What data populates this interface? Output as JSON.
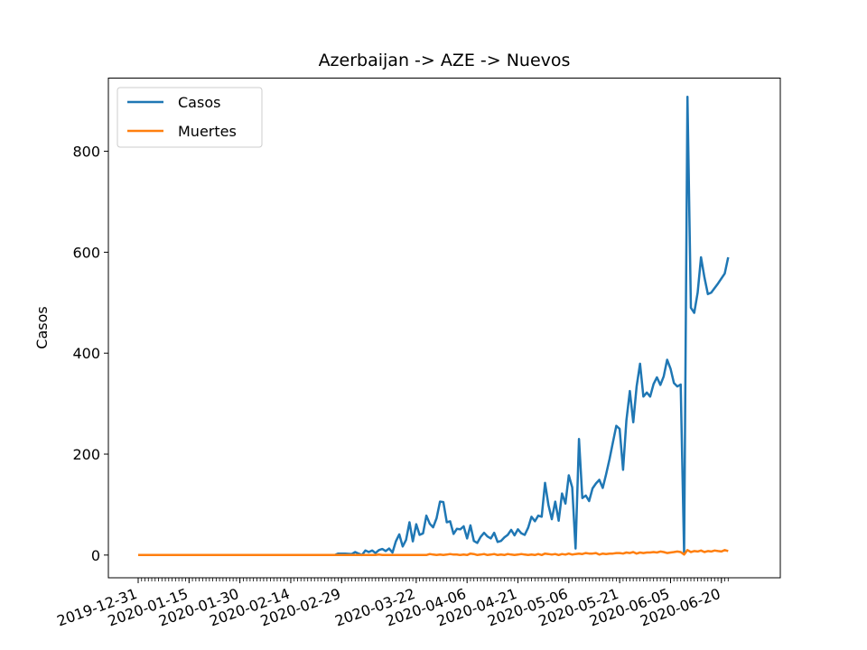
{
  "chart_data": {
    "type": "line",
    "title": "Azerbaijan -> AZE -> Nuevos",
    "xlabel": "",
    "ylabel": "Casos",
    "x_ticks": [
      "2019-12-31",
      "2020-01-15",
      "2020-01-30",
      "2020-02-14",
      "2020-02-29",
      "2020-03-22",
      "2020-04-06",
      "2020-04-21",
      "2020-05-06",
      "2020-05-21",
      "2020-06-05",
      "2020-06-20"
    ],
    "ylim": [
      -45,
      945
    ],
    "yticks": [
      0,
      200,
      400,
      600,
      800
    ],
    "grid": false,
    "legend_position": "top-left",
    "series": [
      {
        "name": "Casos",
        "color": "#1f77b4",
        "points": [
          [
            "2019-12-31",
            0
          ],
          [
            "2020-02-27",
            0
          ],
          [
            "2020-02-28",
            3
          ],
          [
            "2020-03-01",
            3
          ],
          [
            "2020-03-03",
            2
          ],
          [
            "2020-03-04",
            6
          ],
          [
            "2020-03-05",
            3
          ],
          [
            "2020-03-06",
            0
          ],
          [
            "2020-03-07",
            9
          ],
          [
            "2020-03-08",
            6
          ],
          [
            "2020-03-09",
            9
          ],
          [
            "2020-03-10",
            4
          ],
          [
            "2020-03-11",
            10
          ],
          [
            "2020-03-12",
            12
          ],
          [
            "2020-03-13",
            8
          ],
          [
            "2020-03-14",
            13
          ],
          [
            "2020-03-15",
            5
          ],
          [
            "2020-03-16",
            27
          ],
          [
            "2020-03-17",
            41
          ],
          [
            "2020-03-18",
            17
          ],
          [
            "2020-03-19",
            30
          ],
          [
            "2020-03-20",
            65
          ],
          [
            "2020-03-21",
            27
          ],
          [
            "2020-03-22",
            61
          ],
          [
            "2020-03-23",
            40
          ],
          [
            "2020-03-24",
            43
          ],
          [
            "2020-03-25",
            78
          ],
          [
            "2020-03-26",
            62
          ],
          [
            "2020-03-27",
            55
          ],
          [
            "2020-03-28",
            73
          ],
          [
            "2020-03-29",
            106
          ],
          [
            "2020-03-30",
            105
          ],
          [
            "2020-03-31",
            65
          ],
          [
            "2020-04-01",
            67
          ],
          [
            "2020-04-02",
            42
          ],
          [
            "2020-04-03",
            52
          ],
          [
            "2020-04-04",
            51
          ],
          [
            "2020-04-05",
            57
          ],
          [
            "2020-04-06",
            33
          ],
          [
            "2020-04-07",
            59
          ],
          [
            "2020-04-08",
            28
          ],
          [
            "2020-04-09",
            24
          ],
          [
            "2020-04-10",
            36
          ],
          [
            "2020-04-11",
            44
          ],
          [
            "2020-04-12",
            37
          ],
          [
            "2020-04-13",
            33
          ],
          [
            "2020-04-14",
            44
          ],
          [
            "2020-04-15",
            26
          ],
          [
            "2020-04-16",
            28
          ],
          [
            "2020-04-17",
            35
          ],
          [
            "2020-04-18",
            40
          ],
          [
            "2020-04-19",
            50
          ],
          [
            "2020-04-20",
            39
          ],
          [
            "2020-04-21",
            51
          ],
          [
            "2020-04-22",
            43
          ],
          [
            "2020-04-23",
            40
          ],
          [
            "2020-04-24",
            54
          ],
          [
            "2020-04-25",
            76
          ],
          [
            "2020-04-26",
            67
          ],
          [
            "2020-04-27",
            78
          ],
          [
            "2020-04-28",
            76
          ],
          [
            "2020-04-29",
            143
          ],
          [
            "2020-04-30",
            99
          ],
          [
            "2020-05-01",
            71
          ],
          [
            "2020-05-02",
            106
          ],
          [
            "2020-05-03",
            68
          ],
          [
            "2020-05-04",
            122
          ],
          [
            "2020-05-05",
            102
          ],
          [
            "2020-05-06",
            158
          ],
          [
            "2020-05-07",
            134
          ],
          [
            "2020-05-08",
            13
          ],
          [
            "2020-05-09",
            230
          ],
          [
            "2020-05-10",
            113
          ],
          [
            "2020-05-11",
            118
          ],
          [
            "2020-05-12",
            107
          ],
          [
            "2020-05-13",
            132
          ],
          [
            "2020-05-14",
            142
          ],
          [
            "2020-05-15",
            149
          ],
          [
            "2020-05-16",
            133
          ],
          [
            "2020-05-17",
            160
          ],
          [
            "2020-05-18",
            190
          ],
          [
            "2020-05-19",
            223
          ],
          [
            "2020-05-20",
            256
          ],
          [
            "2020-05-21",
            250
          ],
          [
            "2020-05-22",
            169
          ],
          [
            "2020-05-23",
            267
          ],
          [
            "2020-05-24",
            325
          ],
          [
            "2020-05-25",
            263
          ],
          [
            "2020-05-26",
            334
          ],
          [
            "2020-05-27",
            379
          ],
          [
            "2020-05-28",
            314
          ],
          [
            "2020-05-29",
            322
          ],
          [
            "2020-05-30",
            314
          ],
          [
            "2020-05-31",
            339
          ],
          [
            "2020-06-01",
            352
          ],
          [
            "2020-06-02",
            337
          ],
          [
            "2020-06-03",
            354
          ],
          [
            "2020-06-04",
            387
          ],
          [
            "2020-06-05",
            369
          ],
          [
            "2020-06-06",
            341
          ],
          [
            "2020-06-07",
            334
          ],
          [
            "2020-06-08",
            338
          ],
          [
            "2020-06-09",
            3
          ],
          [
            "2020-06-10",
            908
          ],
          [
            "2020-06-11",
            490
          ],
          [
            "2020-06-12",
            480
          ],
          [
            "2020-06-13",
            520
          ],
          [
            "2020-06-14",
            590
          ],
          [
            "2020-06-15",
            550
          ],
          [
            "2020-06-16",
            517
          ],
          [
            "2020-06-17",
            520
          ],
          [
            "2020-06-19",
            538
          ],
          [
            "2020-06-21",
            558
          ],
          [
            "2020-06-22",
            590
          ]
        ]
      },
      {
        "name": "Muertes",
        "color": "#ff7f0e",
        "points": [
          [
            "2019-12-31",
            0
          ],
          [
            "2020-03-10",
            0
          ],
          [
            "2020-03-11",
            1
          ],
          [
            "2020-03-12",
            0
          ],
          [
            "2020-03-25",
            0
          ],
          [
            "2020-03-26",
            2
          ],
          [
            "2020-03-27",
            1
          ],
          [
            "2020-03-28",
            0
          ],
          [
            "2020-03-29",
            1
          ],
          [
            "2020-03-30",
            0
          ],
          [
            "2020-03-31",
            1
          ],
          [
            "2020-04-01",
            2
          ],
          [
            "2020-04-02",
            1
          ],
          [
            "2020-04-03",
            1
          ],
          [
            "2020-04-04",
            0
          ],
          [
            "2020-04-05",
            1
          ],
          [
            "2020-04-06",
            0
          ],
          [
            "2020-04-07",
            3
          ],
          [
            "2020-04-08",
            2
          ],
          [
            "2020-04-09",
            0
          ],
          [
            "2020-04-10",
            1
          ],
          [
            "2020-04-11",
            2
          ],
          [
            "2020-04-12",
            0
          ],
          [
            "2020-04-13",
            1
          ],
          [
            "2020-04-14",
            2
          ],
          [
            "2020-04-15",
            0
          ],
          [
            "2020-04-16",
            1
          ],
          [
            "2020-04-17",
            0
          ],
          [
            "2020-04-18",
            2
          ],
          [
            "2020-04-19",
            1
          ],
          [
            "2020-04-20",
            0
          ],
          [
            "2020-04-21",
            1
          ],
          [
            "2020-04-22",
            2
          ],
          [
            "2020-04-23",
            1
          ],
          [
            "2020-04-24",
            0
          ],
          [
            "2020-04-25",
            1
          ],
          [
            "2020-04-26",
            0
          ],
          [
            "2020-04-27",
            2
          ],
          [
            "2020-04-28",
            0
          ],
          [
            "2020-04-29",
            3
          ],
          [
            "2020-04-30",
            2
          ],
          [
            "2020-05-01",
            1
          ],
          [
            "2020-05-02",
            2
          ],
          [
            "2020-05-03",
            0
          ],
          [
            "2020-05-04",
            2
          ],
          [
            "2020-05-05",
            1
          ],
          [
            "2020-05-06",
            3
          ],
          [
            "2020-05-07",
            1
          ],
          [
            "2020-05-08",
            2
          ],
          [
            "2020-05-09",
            3
          ],
          [
            "2020-05-10",
            2
          ],
          [
            "2020-05-11",
            4
          ],
          [
            "2020-05-12",
            3
          ],
          [
            "2020-05-13",
            3
          ],
          [
            "2020-05-14",
            4
          ],
          [
            "2020-05-15",
            1
          ],
          [
            "2020-05-16",
            3
          ],
          [
            "2020-05-17",
            2
          ],
          [
            "2020-05-18",
            3
          ],
          [
            "2020-05-19",
            3
          ],
          [
            "2020-05-20",
            4
          ],
          [
            "2020-05-21",
            4
          ],
          [
            "2020-05-22",
            3
          ],
          [
            "2020-05-23",
            5
          ],
          [
            "2020-05-24",
            4
          ],
          [
            "2020-05-25",
            6
          ],
          [
            "2020-05-26",
            3
          ],
          [
            "2020-05-27",
            5
          ],
          [
            "2020-05-28",
            4
          ],
          [
            "2020-05-29",
            5
          ],
          [
            "2020-05-30",
            5
          ],
          [
            "2020-05-31",
            6
          ],
          [
            "2020-06-01",
            5
          ],
          [
            "2020-06-02",
            7
          ],
          [
            "2020-06-03",
            6
          ],
          [
            "2020-06-04",
            4
          ],
          [
            "2020-06-05",
            5
          ],
          [
            "2020-06-06",
            6
          ],
          [
            "2020-06-07",
            7
          ],
          [
            "2020-06-08",
            6
          ],
          [
            "2020-06-09",
            1
          ],
          [
            "2020-06-10",
            10
          ],
          [
            "2020-06-11",
            6
          ],
          [
            "2020-06-12",
            8
          ],
          [
            "2020-06-13",
            7
          ],
          [
            "2020-06-14",
            9
          ],
          [
            "2020-06-15",
            6
          ],
          [
            "2020-06-16",
            8
          ],
          [
            "2020-06-17",
            7
          ],
          [
            "2020-06-18",
            9
          ],
          [
            "2020-06-19",
            8
          ],
          [
            "2020-06-20",
            7
          ],
          [
            "2020-06-21",
            10
          ],
          [
            "2020-06-22",
            8
          ]
        ]
      }
    ]
  }
}
